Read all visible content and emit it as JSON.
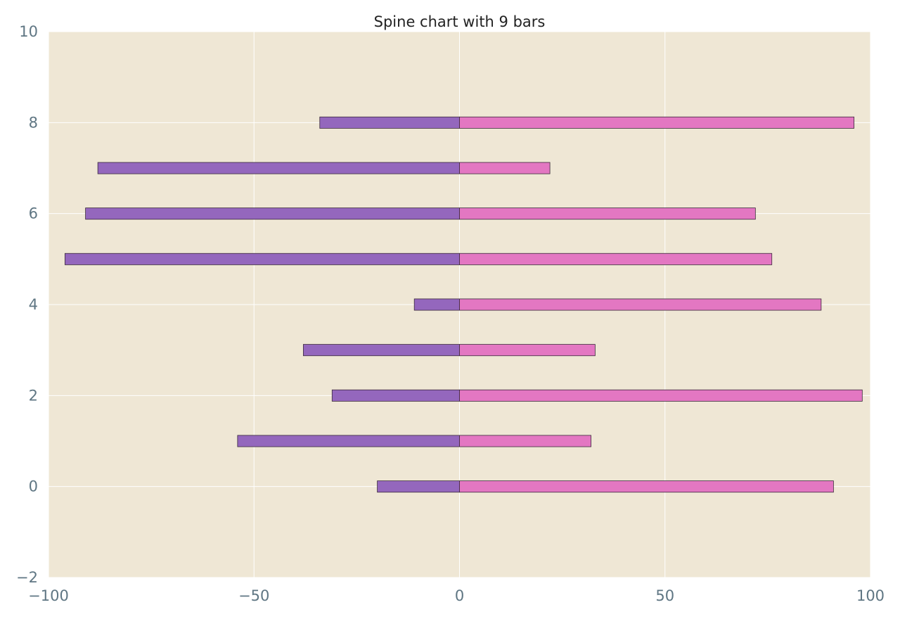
{
  "chart_data": {
    "type": "bar",
    "orientation": "horizontal",
    "stacked_diverging": true,
    "title": "Spine chart with 9 bars",
    "xlabel": "",
    "ylabel": "",
    "xlim": [
      -100,
      100
    ],
    "ylim": [
      -2,
      10
    ],
    "x_ticks": [
      -100,
      -50,
      0,
      50,
      100
    ],
    "x_tick_labels": [
      "−100",
      "−50",
      "0",
      "50",
      "100"
    ],
    "y_ticks": [
      -2,
      0,
      2,
      4,
      6,
      8,
      10
    ],
    "y_tick_labels": [
      "−2",
      "0",
      "2",
      "4",
      "6",
      "8",
      "10"
    ],
    "grid": true,
    "background_color": "#efe7d5",
    "grid_color": "#ffffff",
    "bar_edge_color": "#3a2a3a",
    "categories": [
      0,
      1,
      2,
      3,
      4,
      5,
      6,
      7,
      8
    ],
    "series": [
      {
        "color": "#9467bd",
        "values": [
          -20,
          -54,
          -31,
          -38,
          -11,
          -96,
          -91,
          -88,
          -34
        ]
      },
      {
        "color": "#e377c2",
        "values": [
          91,
          32,
          98,
          33,
          88,
          76,
          72,
          22,
          96
        ]
      }
    ]
  }
}
